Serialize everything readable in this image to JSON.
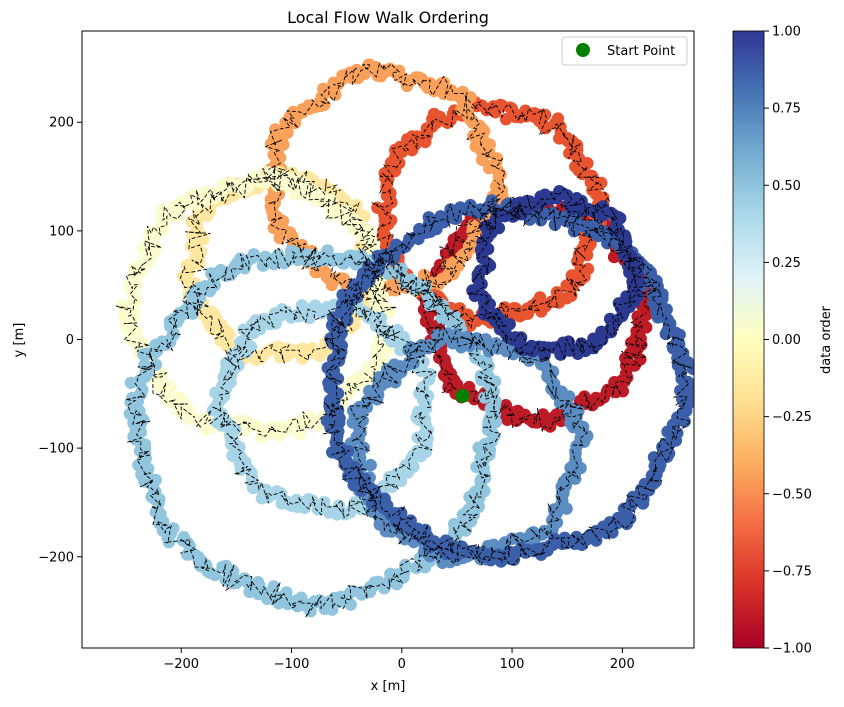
{
  "chart_data": {
    "type": "scatter",
    "title": "Local Flow Walk Ordering",
    "xlabel": "x [m]",
    "ylabel": "y [m]",
    "xlim": [
      -290,
      265
    ],
    "ylim": [
      -284,
      284
    ],
    "xticks": [
      -200,
      -100,
      0,
      100,
      200
    ],
    "xtick_labels": [
      "−200",
      "−100",
      "0",
      "100",
      "200"
    ],
    "yticks": [
      -200,
      -100,
      0,
      100,
      200
    ],
    "ytick_labels": [
      "−200",
      "−100",
      "0",
      "100",
      "200"
    ],
    "grid": false,
    "legend": {
      "position": "top-right",
      "entries": [
        {
          "label": "Start Point",
          "color": "#008000",
          "marker": "circle"
        }
      ]
    },
    "colorbar": {
      "label": "data order",
      "range": [
        -1.0,
        1.0
      ],
      "ticks": [
        -1.0,
        -0.75,
        -0.5,
        -0.25,
        0.0,
        0.25,
        0.5,
        0.75,
        1.0
      ],
      "tick_labels": [
        "−1.00",
        "−0.75",
        "−0.50",
        "−0.25",
        "0.00",
        "0.25",
        "0.50",
        "0.75",
        "1.00"
      ],
      "colormap": "RdYlBu",
      "stops": [
        "#a50026",
        "#d73027",
        "#f46d43",
        "#fdae61",
        "#fee090",
        "#ffffbf",
        "#e0f3f8",
        "#abd9e9",
        "#74add1",
        "#4575b4",
        "#313695"
      ]
    },
    "start_point": {
      "x": 55,
      "y": -52
    },
    "series": [
      {
        "color_value": -0.9,
        "color": "#bd1b26",
        "center": [
          122,
          25
        ],
        "radius": 97
      },
      {
        "color_value": -0.7,
        "color": "#e8542f",
        "center": [
          80,
          117
        ],
        "radius": 97
      },
      {
        "color_value": -0.45,
        "color": "#f9a15b",
        "center": [
          -16,
          145
        ],
        "radius": 100
      },
      {
        "color_value": -0.15,
        "color": "#fee7a0",
        "center": [
          -110,
          67
        ],
        "radius": 82
      },
      {
        "color_value": 0.05,
        "color": "#fbfdcf",
        "center": [
          -130,
          30
        ],
        "radius": 115
      },
      {
        "color_value": 0.45,
        "color": "#a7d5e7",
        "center": [
          -70,
          -62
        ],
        "radius": 93
      },
      {
        "color_value": 0.6,
        "color": "#92c5de",
        "center": [
          -80,
          -80
        ],
        "radius": 160
      },
      {
        "color_value": 0.75,
        "color": "#5b8dc2",
        "center": [
          60,
          -100
        ],
        "radius": 100
      },
      {
        "color_value": 0.85,
        "color": "#3b5fa8",
        "center": [
          95,
          -40
        ],
        "radius": 160
      },
      {
        "color_value": 0.97,
        "color": "#2b3990",
        "center": [
          140,
          60
        ],
        "radius": 70
      }
    ]
  }
}
